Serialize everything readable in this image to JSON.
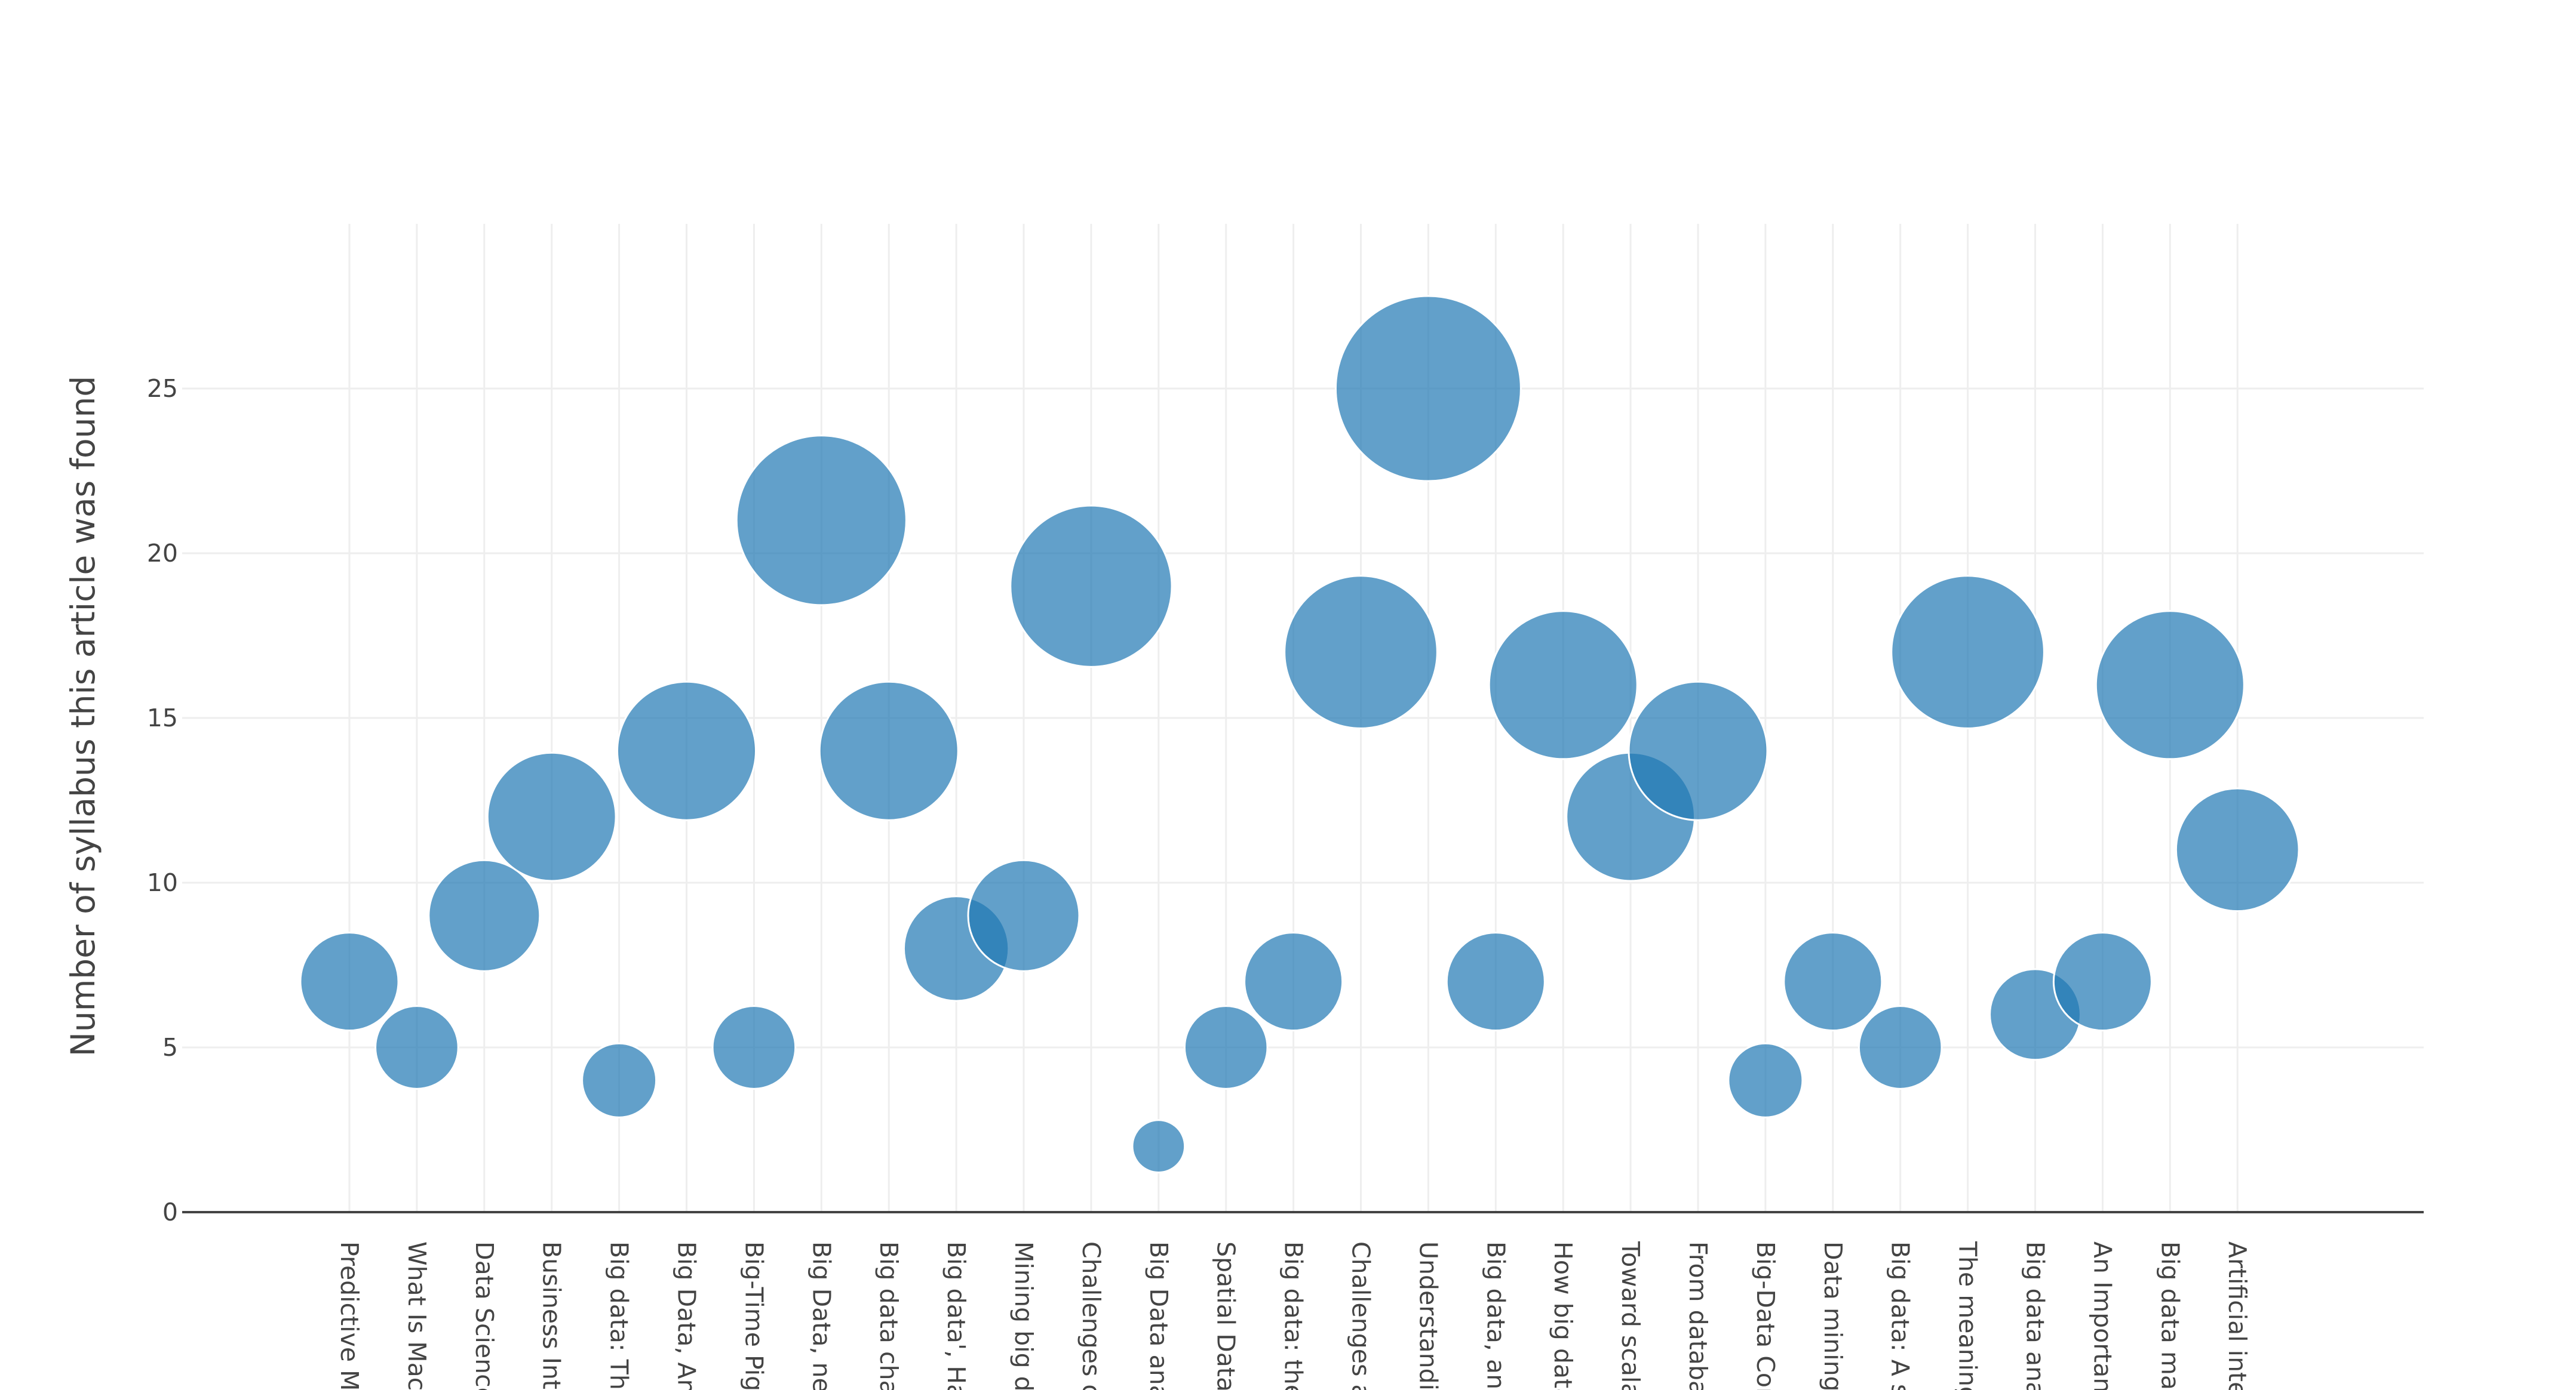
{
  "colors": {
    "bubble": "#1f77b4",
    "grid": "#eeeeee",
    "axis": "#444444",
    "background": "#ffffff"
  },
  "chart_data": {
    "type": "scatter",
    "marker": "bubble",
    "title": "",
    "xlabel": "",
    "ylabel": "Number of syllabus this article was found",
    "ylim": [
      0,
      30
    ],
    "yticks": [
      0,
      5,
      10,
      15,
      20,
      25
    ],
    "grid": true,
    "legend": "none",
    "categories": [
      "Predictive Mo",
      "What Is Mach",
      "Data Science",
      "Business Inte",
      "Big data: The",
      "Big Data, Ana",
      "Big-Time Pigs",
      "Big Data, nev",
      "Big data chal",
      "Big data', Ha",
      "Mining big da",
      "Challenges o",
      "Big Data anal",
      "Spatial Data I",
      "Big data: the",
      "Challenges a",
      "Understandin",
      "Big data, ana",
      "How big data",
      "Toward scala",
      "From databa",
      "Big-Data Con",
      "Data mining v",
      "Big data: A su",
      "The meaning",
      "Big data anal",
      "An Important",
      "Big data man",
      "Artificial intel"
    ],
    "values": [
      7,
      5,
      9,
      12,
      4,
      14,
      5,
      21,
      14,
      8,
      9,
      19,
      2,
      5,
      7,
      17,
      25,
      7,
      16,
      12,
      14,
      4,
      7,
      5,
      17,
      6,
      7,
      16,
      11
    ]
  }
}
